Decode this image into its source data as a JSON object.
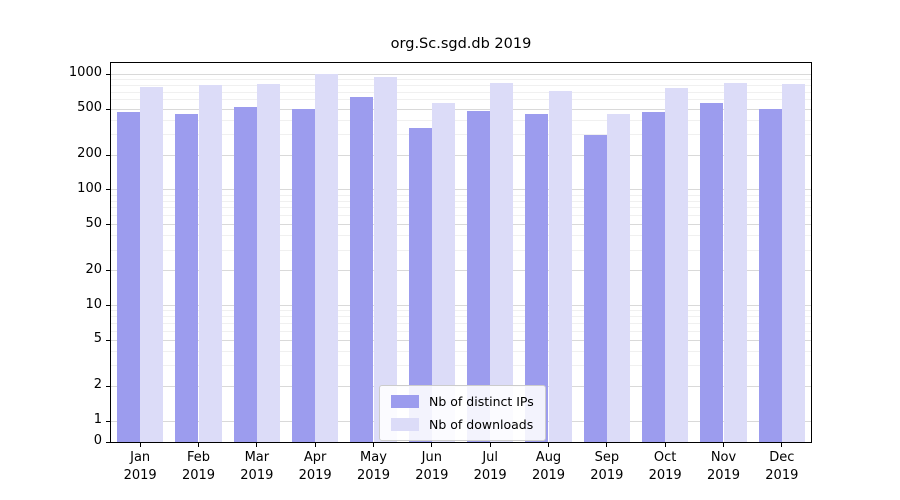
{
  "chart_data": {
    "type": "bar",
    "title": "org.Sc.sgd.db 2019",
    "categories": [
      "Jan",
      "Feb",
      "Mar",
      "Apr",
      "May",
      "Jun",
      "Jul",
      "Aug",
      "Sep",
      "Oct",
      "Nov",
      "Dec"
    ],
    "year_label": "2019",
    "series": [
      {
        "name": "Nb of distinct IPs",
        "key": "ips",
        "color": "#9c9cee",
        "values": [
          470,
          450,
          520,
          500,
          640,
          340,
          480,
          450,
          300,
          475,
          560,
          505
        ]
      },
      {
        "name": "Nb of downloads",
        "key": "downloads",
        "color": "#dcdcf8",
        "values": [
          780,
          800,
          830,
          1000,
          950,
          560,
          840,
          720,
          450,
          760,
          840,
          830
        ]
      }
    ],
    "y_ticks": [
      0,
      1,
      2,
      5,
      10,
      20,
      50,
      100,
      200,
      500,
      1000
    ],
    "y_scale": "symlog",
    "ylim": [
      0,
      1250
    ],
    "xlabel": "",
    "ylabel": "",
    "grid": true,
    "legend_position": "lower center"
  }
}
